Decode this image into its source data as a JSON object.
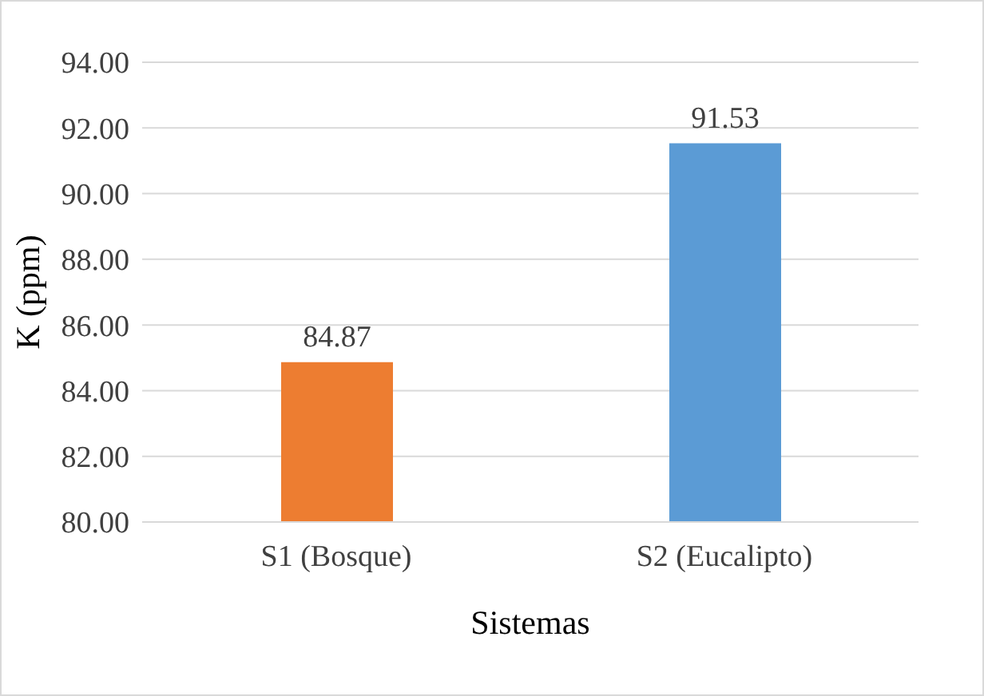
{
  "chart_data": {
    "type": "bar",
    "xlabel": "Sistemas",
    "ylabel": "K (ppm)",
    "categories": [
      "S1 (Bosque)",
      "S2 (Eucalipto)"
    ],
    "values": [
      84.87,
      91.53
    ],
    "colors": [
      "#ed7d31",
      "#5b9bd5"
    ],
    "ylim": [
      80,
      94
    ],
    "yticks": [
      {
        "value": 80,
        "label": "80.00"
      },
      {
        "value": 82,
        "label": "82.00"
      },
      {
        "value": 84,
        "label": "84.00"
      },
      {
        "value": 86,
        "label": "86.00"
      },
      {
        "value": 88,
        "label": "88.00"
      },
      {
        "value": 90,
        "label": "90.00"
      },
      {
        "value": 92,
        "label": "92.00"
      },
      {
        "value": 94,
        "label": "94.00"
      }
    ],
    "grid": "y",
    "data_labels": true,
    "legend": false
  }
}
